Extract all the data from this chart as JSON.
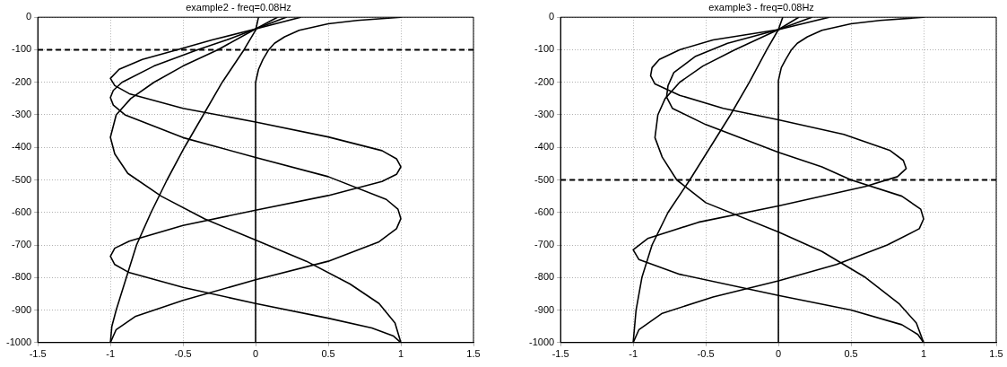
{
  "chart_data": [
    {
      "type": "line",
      "title": "example2 - freq=0.08Hz",
      "xlim": [
        -1.5,
        1.5
      ],
      "xticks": [
        -1.5,
        -1,
        -0.5,
        0,
        0.5,
        1,
        1.5
      ],
      "ylim": [
        -1000,
        0
      ],
      "yticks": [
        -1000,
        -900,
        -800,
        -700,
        -600,
        -500,
        -400,
        -300,
        -200,
        -100,
        0
      ],
      "grid": true,
      "legend": false,
      "marker": "none",
      "line_style": "solid",
      "ref_lines": [
        {
          "axis": "y",
          "value": -100,
          "color": "#000000",
          "line_style": "dashed"
        }
      ],
      "series": [
        {
          "color": "#000000",
          "x": [
            1,
            0.7,
            0.5,
            0.3,
            0.2,
            0.13,
            0.09,
            0.05,
            0.02,
            0,
            0
          ],
          "values": [
            0,
            -10,
            -20,
            -40,
            -60,
            -80,
            -100,
            -130,
            -160,
            -200,
            -1000
          ]
        },
        {
          "color": "#000000",
          "x": [
            0.02,
            0,
            -0.08,
            -0.23,
            -0.36,
            -0.49,
            -0.61,
            -0.72,
            -0.82,
            -0.89,
            -0.96,
            -0.99,
            -1
          ],
          "values": [
            0,
            -40,
            -100,
            -200,
            -300,
            -400,
            -500,
            -600,
            -700,
            -800,
            -900,
            -950,
            -1000
          ]
        },
        {
          "color": "#000000",
          "x": [
            0.31,
            0,
            -0.3,
            -0.54,
            -0.78,
            -0.94,
            -1,
            -0.97,
            -0.87,
            -0.5,
            0,
            0.5,
            0.87,
            0.97,
            1,
            0.97,
            0.87,
            0.5,
            0,
            -0.5,
            -0.87,
            -0.97,
            -1,
            -0.97,
            -0.87,
            -0.5,
            0,
            0.5,
            0.8,
            0.95,
            1
          ],
          "values": [
            0,
            -36,
            -70,
            -100,
            -130,
            -160,
            -188,
            -210,
            -235,
            -280,
            -322,
            -368,
            -410,
            -435,
            -460,
            -483,
            -505,
            -548,
            -593,
            -640,
            -688,
            -710,
            -735,
            -760,
            -785,
            -830,
            -880,
            -925,
            -955,
            -980,
            -1000
          ]
        },
        {
          "color": "#000000",
          "x": [
            0.21,
            0,
            -0.2,
            -0.4,
            -0.7,
            -0.92,
            -0.98,
            -1,
            -0.98,
            -0.9,
            -0.5,
            0,
            0.5,
            0.9,
            0.98,
            1,
            0.97,
            0.85,
            0.5,
            0,
            -0.5,
            -0.83,
            -0.96,
            -1
          ],
          "values": [
            0,
            -36,
            -70,
            -100,
            -150,
            -200,
            -225,
            -247,
            -270,
            -300,
            -370,
            -431,
            -490,
            -560,
            -590,
            -619,
            -650,
            -690,
            -750,
            -807,
            -870,
            -920,
            -960,
            -1000
          ]
        },
        {
          "color": "#000000",
          "x": [
            0.15,
            0,
            -0.26,
            -0.5,
            -0.7,
            -0.86,
            -0.96,
            -1,
            -0.97,
            -0.88,
            -0.65,
            -0.35,
            0,
            0.35,
            0.65,
            0.85,
            0.96,
            1
          ],
          "values": [
            0,
            -36,
            -100,
            -150,
            -200,
            -250,
            -300,
            -369,
            -420,
            -480,
            -550,
            -620,
            -685,
            -750,
            -820,
            -880,
            -940,
            -1000
          ]
        }
      ]
    },
    {
      "type": "line",
      "title": "example3 - freq=0.08Hz",
      "xlim": [
        -1.5,
        1.5
      ],
      "xticks": [
        -1.5,
        -1,
        -0.5,
        0,
        0.5,
        1,
        1.5
      ],
      "ylim": [
        -1000,
        0
      ],
      "yticks": [
        -1000,
        -900,
        -800,
        -700,
        -600,
        -500,
        -400,
        -300,
        -200,
        -100,
        0
      ],
      "grid": true,
      "legend": false,
      "marker": "none",
      "line_style": "solid",
      "ref_lines": [
        {
          "axis": "y",
          "value": -500,
          "color": "#000000",
          "line_style": "dashed"
        }
      ],
      "series": [
        {
          "color": "#000000",
          "x": [
            1,
            0.7,
            0.5,
            0.3,
            0.2,
            0.13,
            0.09,
            0.05,
            0.02,
            0,
            0
          ],
          "values": [
            0,
            -10,
            -20,
            -40,
            -60,
            -80,
            -100,
            -130,
            -155,
            -195,
            -1000
          ]
        },
        {
          "color": "#000000",
          "x": [
            0.03,
            0,
            -0.08,
            -0.2,
            -0.33,
            -0.47,
            -0.61,
            -0.76,
            -0.87,
            -0.94,
            -0.98,
            -1
          ],
          "values": [
            0,
            -38,
            -100,
            -200,
            -300,
            -400,
            -500,
            -600,
            -700,
            -800,
            -900,
            -1000
          ]
        },
        {
          "color": "#000000",
          "x": [
            0.35,
            0,
            -0.45,
            -0.68,
            -0.82,
            -0.87,
            -0.88,
            -0.85,
            -0.68,
            -0.38,
            0,
            0.45,
            0.77,
            0.86,
            0.88,
            0.82,
            0.6,
            0,
            -0.55,
            -0.9,
            -1,
            -0.96,
            -0.68,
            0,
            0.5,
            0.85,
            0.96,
            1
          ],
          "values": [
            0,
            -38,
            -70,
            -100,
            -130,
            -155,
            -180,
            -205,
            -240,
            -280,
            -315,
            -360,
            -410,
            -440,
            -465,
            -490,
            -520,
            -580,
            -630,
            -680,
            -715,
            -745,
            -790,
            -855,
            -900,
            -945,
            -975,
            -1000
          ]
        },
        {
          "color": "#000000",
          "x": [
            0.23,
            0,
            -0.35,
            -0.57,
            -0.72,
            -0.76,
            -0.77,
            -0.73,
            -0.5,
            0,
            0.3,
            0.5,
            0.85,
            0.98,
            1,
            0.97,
            0.75,
            0.4,
            0,
            -0.45,
            -0.8,
            -0.96,
            -1
          ],
          "values": [
            0,
            -38,
            -80,
            -120,
            -170,
            -210,
            -245,
            -280,
            -330,
            -415,
            -460,
            -500,
            -550,
            -590,
            -620,
            -650,
            -700,
            -760,
            -810,
            -860,
            -910,
            -960,
            -1000
          ]
        },
        {
          "color": "#000000",
          "x": [
            0.14,
            0,
            -0.3,
            -0.52,
            -0.68,
            -0.78,
            -0.83,
            -0.85,
            -0.8,
            -0.7,
            -0.5,
            0,
            0.3,
            0.6,
            0.83,
            0.95,
            1
          ],
          "values": [
            0,
            -38,
            -100,
            -150,
            -200,
            -250,
            -300,
            -370,
            -430,
            -500,
            -570,
            -660,
            -720,
            -800,
            -880,
            -940,
            -1000
          ]
        }
      ]
    }
  ]
}
